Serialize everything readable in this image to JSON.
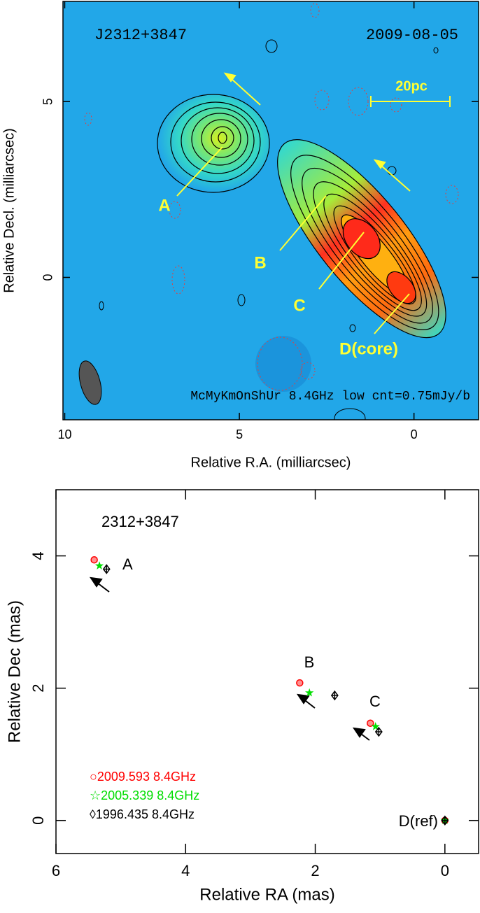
{
  "chart_data": [
    {
      "type": "image",
      "source": "J2312+3847",
      "date": "2009-08-05",
      "scale_bar": "20pc",
      "caption": "McMyKmOnShUr 8.4GHz low cnt=0.75mJy/b",
      "annotations": [
        "A",
        "B",
        "C",
        "D(core)"
      ],
      "x_label": "Relative R.A. (milliarcsec)",
      "y_label": "Relative Decl. (milliarcsec)",
      "xlim": [
        10.05,
        -1.85
      ],
      "ylim": [
        -4.05,
        7.85
      ],
      "xticks": [
        10,
        5,
        0
      ],
      "yticks": [
        0,
        5
      ]
    },
    {
      "type": "scatter",
      "title": "2312+3847",
      "x_label": "Relative RA (mas)",
      "y_label": "Relative Dec (mas)",
      "xlim": [
        6,
        -0.52
      ],
      "ylim": [
        -0.5,
        5
      ],
      "xticks": [
        6,
        4,
        2,
        0
      ],
      "yticks": [
        0,
        2,
        4
      ],
      "annotations": [
        "A",
        "B",
        "C",
        "D(ref)"
      ],
      "series": [
        {
          "name": "○2009.593 8.4GHz",
          "color": "#ff0000",
          "x": [
            5.41,
            2.24,
            1.15,
            0
          ],
          "values": [
            3.94,
            2.08,
            1.47,
            0
          ]
        },
        {
          "name": "☆2005.339 8.4GHz",
          "color": "#00dd00",
          "x": [
            5.33,
            2.09,
            1.07,
            0
          ],
          "values": [
            3.85,
            1.93,
            1.42,
            0
          ]
        },
        {
          "name": "◊1996.435 8.4GHz",
          "color": "#000000",
          "x": [
            5.22,
            1.7,
            1.02,
            0
          ],
          "values": [
            3.8,
            1.89,
            1.34,
            0
          ]
        }
      ]
    }
  ]
}
